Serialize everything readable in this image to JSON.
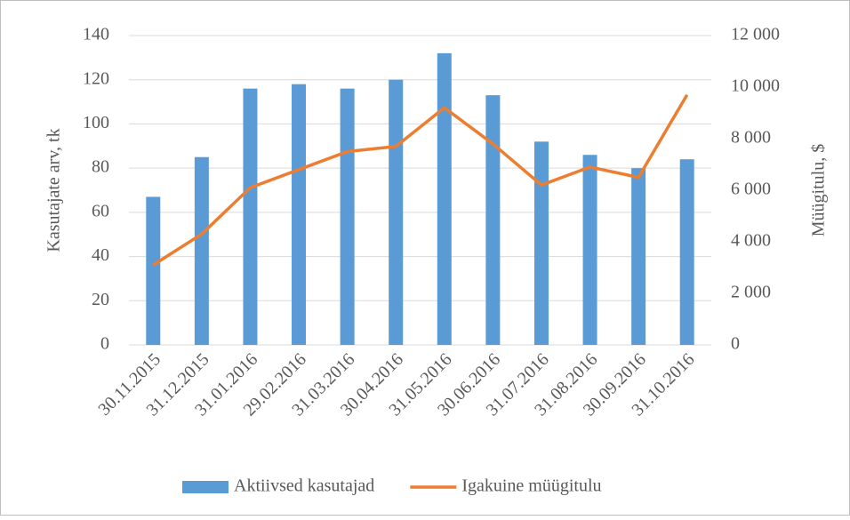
{
  "chart_data": {
    "type": "bar",
    "categories": [
      "30.11.2015",
      "31.12.2015",
      "31.01.2016",
      "29.02.2016",
      "31.03.2016",
      "30.04.2016",
      "31.05.2016",
      "30.06.2016",
      "31.07.2016",
      "31.08.2016",
      "30.09.2016",
      "31.10.2016"
    ],
    "series": [
      {
        "name": "Aktiivsed kasutajad",
        "type": "bar",
        "color": "#5b9bd5",
        "values": [
          67,
          85,
          116,
          118,
          116,
          120,
          132,
          113,
          92,
          86,
          80,
          84
        ]
      },
      {
        "name": "Igakuine müügitulu",
        "type": "line",
        "axis": "y2",
        "color": "#ed7d31",
        "values": [
          3100,
          4300,
          6100,
          6800,
          7500,
          7700,
          9200,
          7800,
          6200,
          6900,
          6500,
          9700
        ]
      }
    ],
    "ylabel": "Kasutajate arv, tk",
    "y2label": "Müügitulu, $",
    "ylim": [
      0,
      140
    ],
    "yticks": [
      0,
      20,
      40,
      60,
      80,
      100,
      120,
      140
    ],
    "y2lim": [
      0,
      12000
    ],
    "y2ticks": [
      0,
      {
        "value": 2000,
        "label": "2 000"
      },
      {
        "value": 4000,
        "label": "4 000"
      },
      {
        "value": 6000,
        "label": "6 000"
      },
      {
        "value": 8000,
        "label": "8 000"
      },
      {
        "value": 10000,
        "label": "10 000"
      },
      {
        "value": 12000,
        "label": "12 000"
      }
    ],
    "grid": true,
    "legend": "bottom"
  }
}
